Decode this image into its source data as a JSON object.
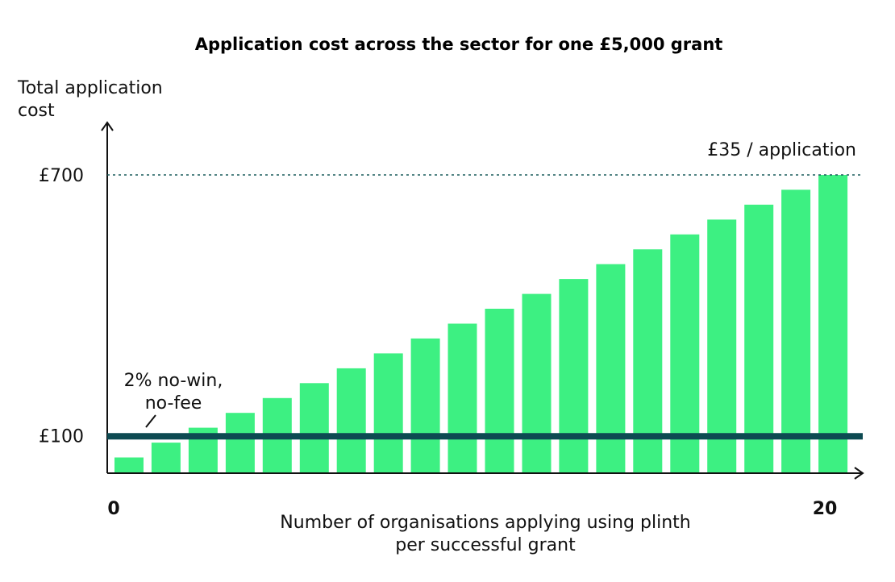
{
  "chart_data": {
    "type": "bar",
    "title": "Application cost across the sector for one £5,000 grant",
    "ylabel": [
      "Total application",
      "cost"
    ],
    "xlabel": [
      "Number of organisations applying using plinth",
      "per successful grant"
    ],
    "x_range": [
      1,
      20
    ],
    "x_tick_labels": [
      "0",
      "20"
    ],
    "y_tick_labels": [
      "£700",
      "£100"
    ],
    "y_ticks": [
      700,
      100
    ],
    "ylim": [
      0,
      700
    ],
    "values": [
      35,
      70,
      105,
      140,
      175,
      210,
      245,
      280,
      315,
      350,
      385,
      420,
      455,
      490,
      525,
      560,
      595,
      630,
      665,
      700
    ],
    "bar_color": "#3df082",
    "reference_lines": [
      {
        "value": 700,
        "label": "£35 / application",
        "style": "dotted",
        "color": "#1a5c5c"
      },
      {
        "value": 100,
        "label": [
          "2% no-win,",
          "no-fee"
        ],
        "style": "solid",
        "color": "#0d4a52"
      }
    ]
  }
}
